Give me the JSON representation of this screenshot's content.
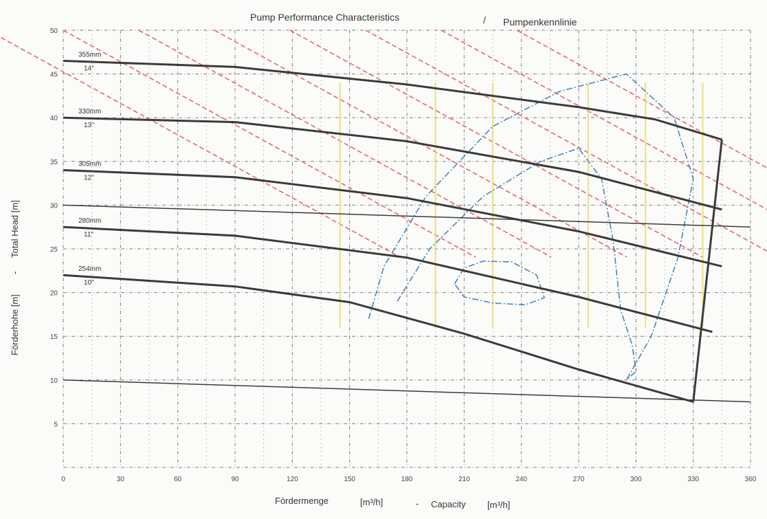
{
  "chart_data": {
    "type": "line",
    "title": "Pump Performance Characteristics",
    "title_separator": "/",
    "title_de": "Pumpenkennlinie",
    "xlabel_de": "Fördermenge",
    "xlabel_de_unit": "[m³/h]",
    "xlabel_separator": "-",
    "xlabel": "Capacity",
    "xlabel_unit": "[m³/h]",
    "ylabel_de": "Förderhohe [m]",
    "ylabel_separator": "-",
    "ylabel": "Total Head [m]",
    "xlim": [
      0,
      360
    ],
    "ylim": [
      0,
      50
    ],
    "x_ticks": [
      "0",
      "30",
      "60",
      "90",
      "120",
      "150",
      "180",
      "210",
      "240",
      "270",
      "300",
      "330",
      "360"
    ],
    "y_ticks": [
      "5",
      "10",
      "15",
      "20",
      "25",
      "30",
      "35",
      "40",
      "45",
      "50"
    ],
    "grid": true,
    "series": [
      {
        "name": "355mm",
        "name_in": "14\"",
        "x": [
          0,
          90,
          180,
          270,
          310,
          345
        ],
        "y": [
          46.5,
          45.8,
          43.8,
          41.2,
          39.8,
          37.5
        ]
      },
      {
        "name": "330mm",
        "name_in": "13\"",
        "x": [
          0,
          90,
          180,
          270,
          345
        ],
        "y": [
          40,
          39.5,
          37.3,
          33.8,
          29.5
        ]
      },
      {
        "name": "305mm",
        "name_in": "12\"",
        "x": [
          0,
          90,
          180,
          270,
          345
        ],
        "y": [
          34,
          33.2,
          30.8,
          27,
          23
        ]
      },
      {
        "name": "280mm",
        "name_in": "11\"",
        "x": [
          0,
          90,
          180,
          270,
          340
        ],
        "y": [
          27.5,
          26.5,
          24,
          19.5,
          15.5
        ]
      },
      {
        "name": "254mm",
        "name_in": "10\"",
        "x": [
          0,
          90,
          150,
          210,
          270,
          330
        ],
        "y": [
          22,
          20.7,
          18.9,
          15.3,
          11.2,
          7.5
        ]
      }
    ],
    "envelope": {
      "right_edge": {
        "x": [
          330,
          345
        ],
        "y": [
          7.5,
          37.5
        ]
      },
      "system_curve_1": {
        "x": [
          0,
          360
        ],
        "y": [
          10,
          7.5
        ]
      },
      "system_curve_2": {
        "x": [
          0,
          360
        ],
        "y": [
          30,
          27.5
        ]
      }
    },
    "efficiency_contours": [
      {
        "x": [
          160,
          168,
          190,
          225,
          260,
          295,
          320,
          330,
          322,
          308,
          295
        ],
        "y": [
          17,
          23,
          31,
          39,
          43,
          45,
          40,
          33,
          24,
          15,
          10
        ]
      },
      {
        "x": [
          175,
          192,
          220,
          250,
          270,
          282,
          288,
          292,
          298,
          300,
          295
        ],
        "y": [
          19,
          25,
          31,
          35,
          36.5,
          33,
          26,
          18,
          14,
          11,
          10
        ]
      },
      {
        "x": [
          205,
          210,
          220,
          235,
          248,
          252,
          242,
          225,
          210,
          205
        ],
        "y": [
          21,
          22.8,
          23.6,
          23.5,
          22,
          19.4,
          18.6,
          18.8,
          19.5,
          21
        ]
      }
    ],
    "power_lines_x": [
      145,
      195,
      225,
      275,
      305,
      335
    ],
    "npsh_offsets": [
      50,
      100,
      150,
      200,
      250,
      300,
      350,
      400
    ]
  }
}
